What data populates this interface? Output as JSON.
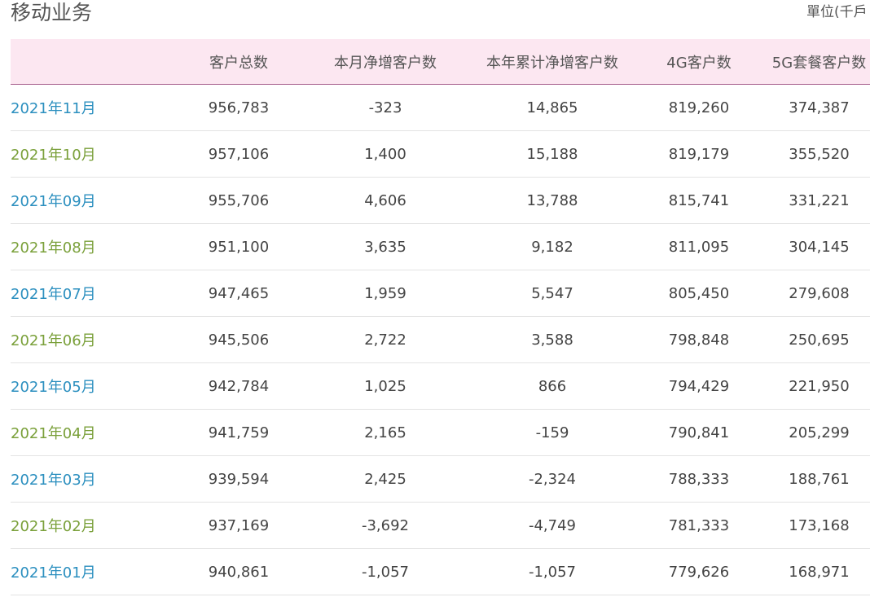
{
  "page": {
    "title": "移动业务",
    "unit": "單位(千戶"
  },
  "table": {
    "headers": [
      "",
      "客户总数",
      "本月净增客户数",
      "本年累计净增客户数",
      "4G客户数",
      "5G套餐客户数"
    ],
    "rows": [
      [
        "2021年11月",
        "956,783",
        "-323",
        "14,865",
        "819,260",
        "374,387"
      ],
      [
        "2021年10月",
        "957,106",
        "1,400",
        "15,188",
        "819,179",
        "355,520"
      ],
      [
        "2021年09月",
        "955,706",
        "4,606",
        "13,788",
        "815,741",
        "331,221"
      ],
      [
        "2021年08月",
        "951,100",
        "3,635",
        "9,182",
        "811,095",
        "304,145"
      ],
      [
        "2021年07月",
        "947,465",
        "1,959",
        "5,547",
        "805,450",
        "279,608"
      ],
      [
        "2021年06月",
        "945,506",
        "2,722",
        "3,588",
        "798,848",
        "250,695"
      ],
      [
        "2021年05月",
        "942,784",
        "1,025",
        "866",
        "794,429",
        "221,950"
      ],
      [
        "2021年04月",
        "941,759",
        "2,165",
        "-159",
        "790,841",
        "205,299"
      ],
      [
        "2021年03月",
        "939,594",
        "2,425",
        "-2,324",
        "788,333",
        "188,761"
      ],
      [
        "2021年02月",
        "937,169",
        "-3,692",
        "-4,749",
        "781,333",
        "173,168"
      ],
      [
        "2021年01月",
        "940,861",
        "-1,057",
        "-1,057",
        "779,626",
        "168,971"
      ]
    ]
  },
  "colors": {
    "header_bg": "#fce7f1",
    "header_border": "#a45a8a",
    "link_blue": "#2b8fbf",
    "link_green": "#7aa03a",
    "text": "#444444"
  }
}
